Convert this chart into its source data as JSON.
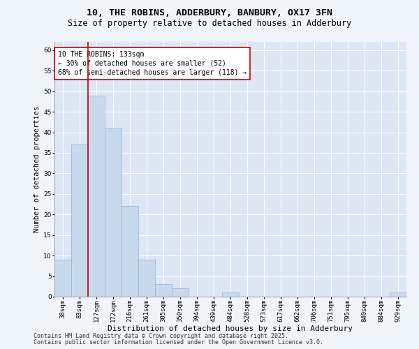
{
  "title1": "10, THE ROBINS, ADDERBURY, BANBURY, OX17 3FN",
  "title2": "Size of property relative to detached houses in Adderbury",
  "xlabel": "Distribution of detached houses by size in Adderbury",
  "ylabel": "Number of detached properties",
  "categories": [
    "38sqm",
    "83sqm",
    "127sqm",
    "172sqm",
    "216sqm",
    "261sqm",
    "305sqm",
    "350sqm",
    "394sqm",
    "439sqm",
    "484sqm",
    "528sqm",
    "573sqm",
    "617sqm",
    "662sqm",
    "706sqm",
    "751sqm",
    "795sqm",
    "840sqm",
    "884sqm",
    "929sqm"
  ],
  "values": [
    9,
    37,
    49,
    41,
    22,
    9,
    3,
    2,
    0,
    0,
    1,
    0,
    0,
    0,
    0,
    0,
    0,
    0,
    0,
    0,
    1
  ],
  "bar_color": "#c8d9ee",
  "bar_edge_color": "#8ab4d8",
  "highlight_index": 2,
  "highlight_color": "#cc0000",
  "ylim": [
    0,
    62
  ],
  "yticks": [
    0,
    5,
    10,
    15,
    20,
    25,
    30,
    35,
    40,
    45,
    50,
    55,
    60
  ],
  "bg_color": "#dce6f5",
  "grid_color": "#ffffff",
  "annotation_title": "10 THE ROBINS: 133sqm",
  "annotation_line1": "← 30% of detached houses are smaller (52)",
  "annotation_line2": "68% of semi-detached houses are larger (118) →",
  "footer1": "Contains HM Land Registry data © Crown copyright and database right 2025.",
  "footer2": "Contains public sector information licensed under the Open Government Licence v3.0.",
  "title1_fontsize": 9.5,
  "title2_fontsize": 8.5,
  "xlabel_fontsize": 8,
  "ylabel_fontsize": 7.5,
  "tick_fontsize": 6.5,
  "annotation_fontsize": 7,
  "footer_fontsize": 6
}
